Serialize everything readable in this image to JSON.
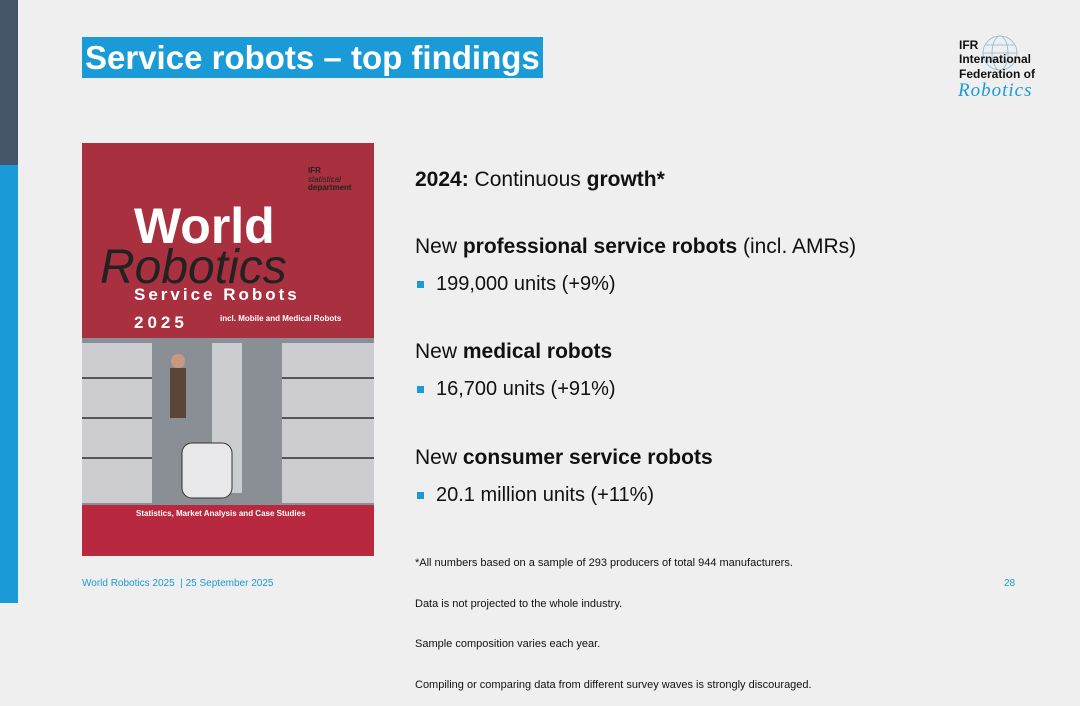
{
  "slide": {
    "title": "Service robots – top findings",
    "logo": {
      "abbr": "IFR",
      "line1": "International",
      "line2": "Federation of",
      "script": "Robotics"
    },
    "cover": {
      "brand": "IFR",
      "department1": "statistical",
      "department2": "department",
      "word1": "World",
      "word2": "Robotics",
      "subtitle": "Service Robots",
      "year": "2025",
      "scope": "incl. Mobile and Medical Robots",
      "footer": "Statistics, Market Analysis and Case Studies"
    },
    "headline": [
      "2024:",
      " Continuous ",
      "growth*"
    ],
    "sections": [
      {
        "heading": [
          "New ",
          "professional service robots",
          " (incl. AMRs)"
        ],
        "bullet": "199,000 units (+9%)"
      },
      {
        "heading": [
          "New ",
          "medical robots"
        ],
        "bullet": "16,700 units (+91%)"
      },
      {
        "heading": [
          "New ",
          "consumer service robots"
        ],
        "bullet": "20.1 million units (+11%)"
      }
    ],
    "footnote": [
      "*All numbers based on a sample of 293 producers of total 944 manufacturers.",
      "Data is not projected to the whole industry.",
      "Sample composition varies each year.",
      "Compiling or comparing data from different survey waves is strongly discouraged."
    ],
    "footer": {
      "source": "World Robotics 2025",
      "date": "| 25 September 2025",
      "page": "28"
    }
  }
}
